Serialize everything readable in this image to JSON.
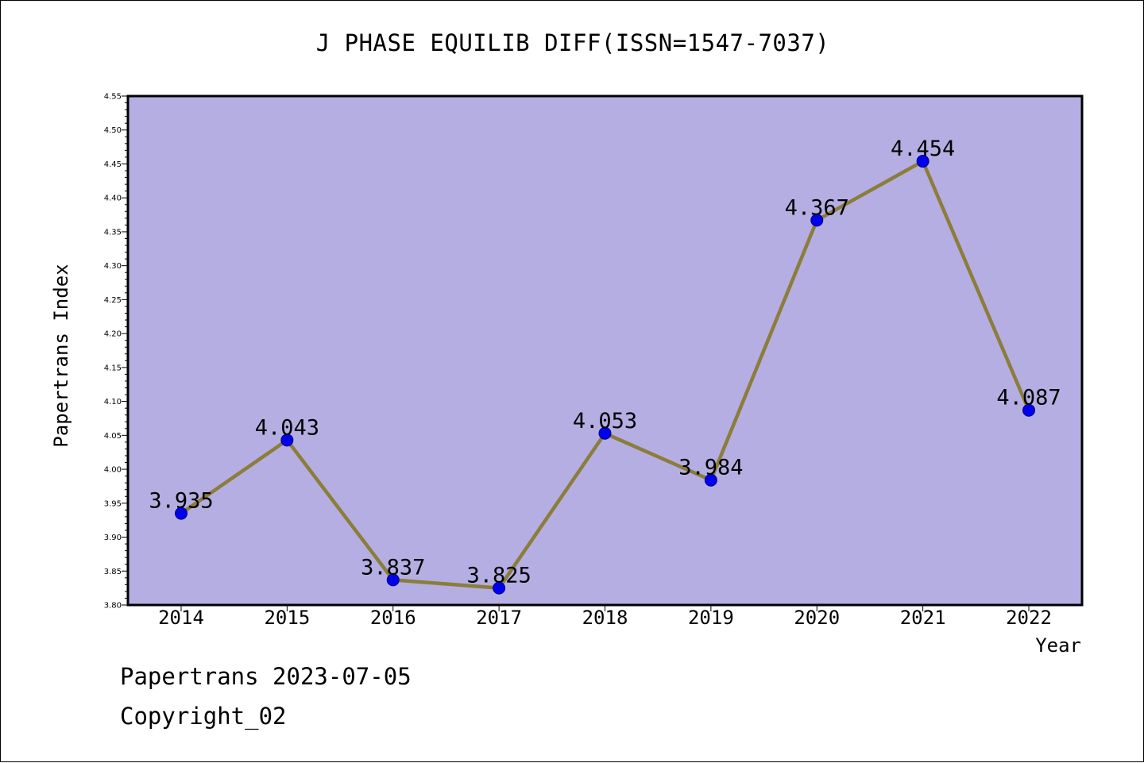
{
  "chart_data": {
    "type": "line",
    "title": "J PHASE EQUILIB DIFF(ISSN=1547-7037)",
    "xlabel": "Year",
    "ylabel": "Papertrans Index",
    "categories": [
      "2014",
      "2015",
      "2016",
      "2017",
      "2018",
      "2019",
      "2020",
      "2021",
      "2022"
    ],
    "series": [
      {
        "values": [
          3.935,
          4.043,
          3.837,
          3.825,
          4.053,
          3.984,
          4.367,
          4.454,
          4.087
        ],
        "labels": [
          "3.935",
          "4.043",
          "3.837",
          "3.825",
          "4.053",
          "3.984",
          "4.367",
          "4.454",
          "4.087"
        ]
      }
    ],
    "ylim": [
      3.8,
      4.55
    ],
    "yticks": [
      "3.80",
      "3.85",
      "3.90",
      "3.95",
      "4.00",
      "4.05",
      "4.10",
      "4.15",
      "4.20",
      "4.25",
      "4.30",
      "4.35",
      "4.40",
      "4.45",
      "4.50",
      "4.55"
    ],
    "grid": false,
    "colors": {
      "plot_background": "#b5aee2",
      "line": "#8b7d3a",
      "marker": "#0000ee",
      "marker_edge": "#000080"
    }
  },
  "footer": {
    "date_text": "Papertrans 2023-07-05",
    "copyright_text": "Copyright_02"
  }
}
